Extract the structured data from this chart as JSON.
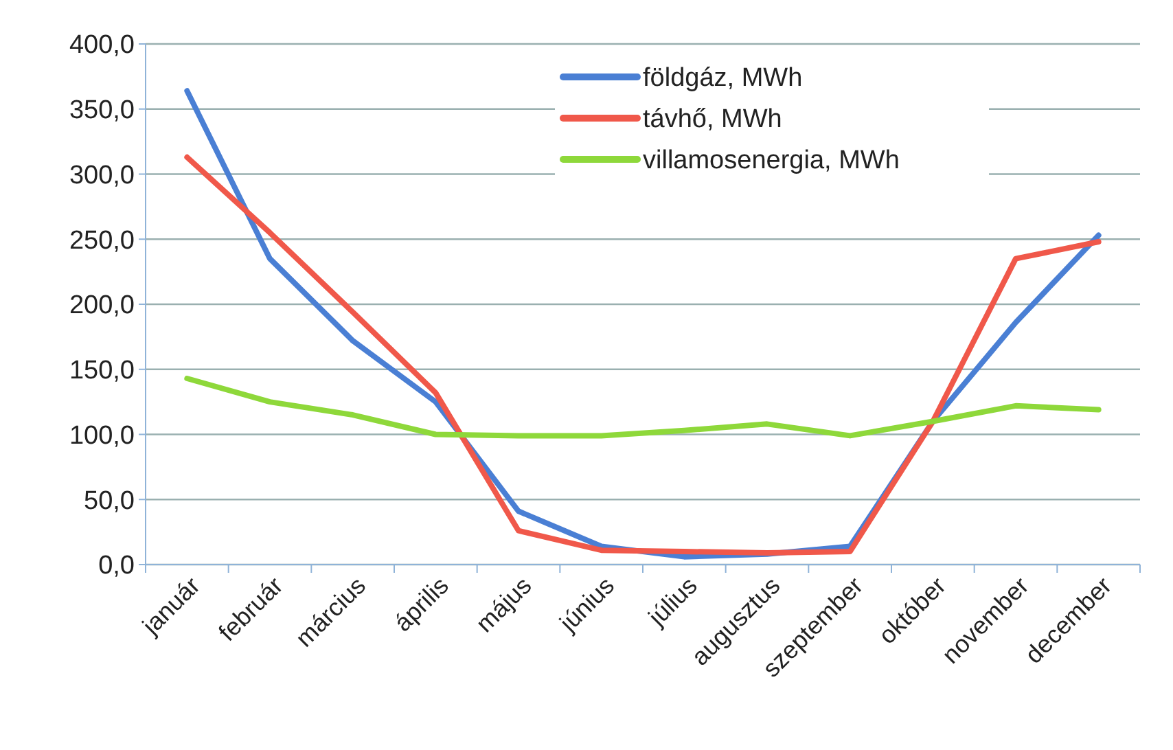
{
  "chart_data": {
    "type": "line",
    "categories": [
      "január",
      "február",
      "március",
      "április",
      "május",
      "június",
      "július",
      "augusztus",
      "szeptember",
      "október",
      "november",
      "december"
    ],
    "series": [
      {
        "name": "földgáz, MWh",
        "color": "#4a7fd4",
        "values": [
          364,
          235,
          172,
          125,
          41,
          14,
          6,
          8,
          14,
          110,
          186,
          253
        ]
      },
      {
        "name": "távhő, MWh",
        "color": "#f0584a",
        "values": [
          313,
          255,
          194,
          132,
          26,
          11,
          10,
          9,
          10,
          110,
          235,
          248
        ]
      },
      {
        "name": "villamosenergia, MWh",
        "color": "#8ed83a",
        "values": [
          143,
          125,
          115,
          100,
          99,
          99,
          103,
          108,
          99,
          110,
          122,
          119
        ]
      }
    ],
    "ylim": [
      0,
      400
    ],
    "yticks": [
      {
        "value": 0,
        "label": "0,0"
      },
      {
        "value": 50,
        "label": "50,0"
      },
      {
        "value": 100,
        "label": "100,0"
      },
      {
        "value": 150,
        "label": "150,0"
      },
      {
        "value": 200,
        "label": "200,0"
      },
      {
        "value": 250,
        "label": "250,0"
      },
      {
        "value": 300,
        "label": "300,0"
      },
      {
        "value": 350,
        "label": "350,0"
      },
      {
        "value": 400,
        "label": "400,0"
      }
    ],
    "grid": "y",
    "legend": "top right",
    "line_style": "solid",
    "marker": "none"
  }
}
